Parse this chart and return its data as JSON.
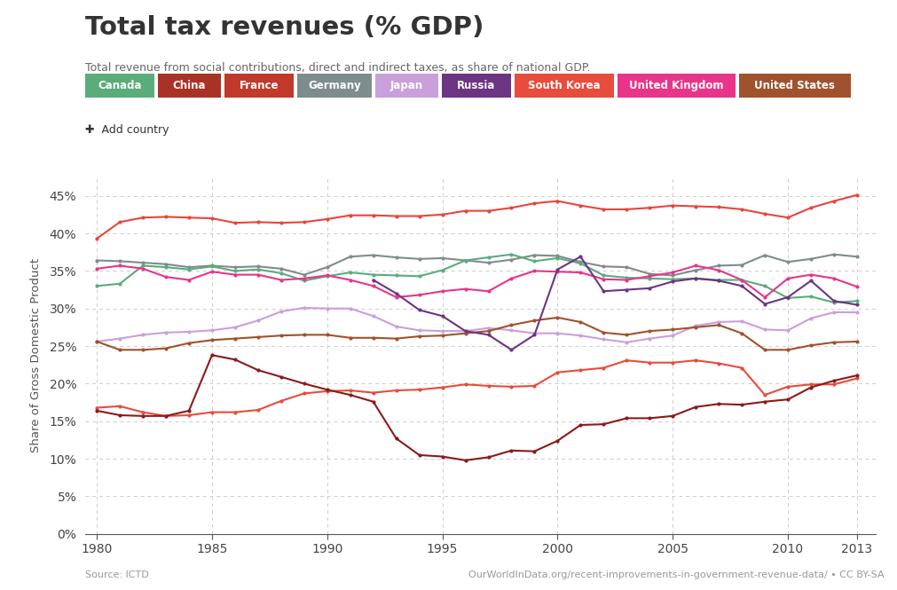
{
  "title": "Total tax revenues (% GDP)",
  "subtitle": "Total revenue from social contributions, direct and indirect taxes, as share of national GDP.",
  "ylabel": "Share of Gross Domestic Product",
  "source_left": "Source: ICTD",
  "source_right": "OurWorldInData.org/recent-improvements-in-government-revenue-data/ • CC BY-SA",
  "add_country_text": "✚  Add country",
  "xlim": [
    1979.5,
    2013.8
  ],
  "ylim": [
    0,
    0.475
  ],
  "yticks": [
    0.0,
    0.05,
    0.1,
    0.15,
    0.2,
    0.25,
    0.3,
    0.35,
    0.4,
    0.45
  ],
  "ytick_labels": [
    "0%",
    "5%",
    "10%",
    "15%",
    "20%",
    "25%",
    "30%",
    "35%",
    "40%",
    "45%"
  ],
  "xticks": [
    1980,
    1985,
    1990,
    1995,
    2000,
    2005,
    2010,
    2013
  ],
  "legend_countries": [
    "Canada",
    "China",
    "France",
    "Germany",
    "Japan",
    "Russia",
    "South Korea",
    "United Kingdom",
    "United States"
  ],
  "legend_colors": [
    "#5aac7b",
    "#a93226",
    "#c0392b",
    "#7f8c8d",
    "#c9a0dc",
    "#6c3483",
    "#e74c3c",
    "#e8358a",
    "#a0522d"
  ],
  "series": {
    "France": {
      "color": "#e8453c",
      "years": [
        1980,
        1981,
        1982,
        1983,
        1984,
        1985,
        1986,
        1987,
        1988,
        1989,
        1990,
        1991,
        1992,
        1993,
        1994,
        1995,
        1996,
        1997,
        1998,
        1999,
        2000,
        2001,
        2002,
        2003,
        2004,
        2005,
        2006,
        2007,
        2008,
        2009,
        2010,
        2011,
        2012,
        2013
      ],
      "values": [
        0.393,
        0.415,
        0.421,
        0.422,
        0.421,
        0.42,
        0.414,
        0.415,
        0.414,
        0.415,
        0.419,
        0.424,
        0.424,
        0.423,
        0.423,
        0.425,
        0.43,
        0.43,
        0.434,
        0.44,
        0.443,
        0.437,
        0.432,
        0.432,
        0.434,
        0.437,
        0.436,
        0.435,
        0.432,
        0.426,
        0.421,
        0.434,
        0.443,
        0.451
      ]
    },
    "Germany": {
      "color": "#7f8c8d",
      "years": [
        1980,
        1981,
        1982,
        1983,
        1984,
        1985,
        1986,
        1987,
        1988,
        1989,
        1990,
        1991,
        1992,
        1993,
        1994,
        1995,
        1996,
        1997,
        1998,
        1999,
        2000,
        2001,
        2002,
        2003,
        2004,
        2005,
        2006,
        2007,
        2008,
        2009,
        2010,
        2011,
        2012,
        2013
      ],
      "values": [
        0.364,
        0.363,
        0.361,
        0.359,
        0.355,
        0.357,
        0.355,
        0.356,
        0.353,
        0.345,
        0.355,
        0.369,
        0.371,
        0.368,
        0.366,
        0.367,
        0.364,
        0.361,
        0.365,
        0.371,
        0.37,
        0.362,
        0.356,
        0.355,
        0.346,
        0.344,
        0.351,
        0.357,
        0.358,
        0.371,
        0.362,
        0.366,
        0.372,
        0.369
      ]
    },
    "Canada": {
      "color": "#5aac7b",
      "years": [
        1980,
        1981,
        1982,
        1983,
        1984,
        1985,
        1986,
        1987,
        1988,
        1989,
        1990,
        1991,
        1992,
        1993,
        1994,
        1995,
        1996,
        1997,
        1998,
        1999,
        2000,
        2001,
        2002,
        2003,
        2004,
        2005,
        2006,
        2007,
        2008,
        2009,
        2010,
        2011,
        2012,
        2013
      ],
      "values": [
        0.33,
        0.333,
        0.357,
        0.355,
        0.352,
        0.356,
        0.35,
        0.352,
        0.347,
        0.337,
        0.343,
        0.348,
        0.345,
        0.344,
        0.343,
        0.351,
        0.364,
        0.368,
        0.372,
        0.363,
        0.367,
        0.36,
        0.344,
        0.341,
        0.34,
        0.339,
        0.34,
        0.338,
        0.338,
        0.33,
        0.314,
        0.316,
        0.308,
        0.31
      ]
    },
    "United Kingdom": {
      "color": "#e8358a",
      "years": [
        1980,
        1981,
        1982,
        1983,
        1984,
        1985,
        1986,
        1987,
        1988,
        1989,
        1990,
        1991,
        1992,
        1993,
        1994,
        1995,
        1996,
        1997,
        1998,
        1999,
        2000,
        2001,
        2002,
        2003,
        2004,
        2005,
        2006,
        2007,
        2008,
        2009,
        2010,
        2011,
        2012,
        2013
      ],
      "values": [
        0.353,
        0.357,
        0.353,
        0.342,
        0.338,
        0.349,
        0.345,
        0.345,
        0.338,
        0.34,
        0.344,
        0.338,
        0.33,
        0.315,
        0.318,
        0.323,
        0.326,
        0.323,
        0.34,
        0.35,
        0.349,
        0.348,
        0.339,
        0.338,
        0.343,
        0.348,
        0.357,
        0.351,
        0.338,
        0.315,
        0.34,
        0.345,
        0.34,
        0.329
      ]
    },
    "Japan": {
      "color": "#c9a0dc",
      "years": [
        1980,
        1981,
        1982,
        1983,
        1984,
        1985,
        1986,
        1987,
        1988,
        1989,
        1990,
        1991,
        1992,
        1993,
        1994,
        1995,
        1996,
        1997,
        1998,
        1999,
        2000,
        2001,
        2002,
        2003,
        2004,
        2005,
        2006,
        2007,
        2008,
        2009,
        2010,
        2011,
        2012,
        2013
      ],
      "values": [
        0.256,
        0.26,
        0.265,
        0.268,
        0.269,
        0.271,
        0.275,
        0.284,
        0.296,
        0.301,
        0.3,
        0.3,
        0.29,
        0.276,
        0.271,
        0.27,
        0.27,
        0.274,
        0.271,
        0.267,
        0.267,
        0.264,
        0.259,
        0.255,
        0.26,
        0.264,
        0.277,
        0.282,
        0.283,
        0.272,
        0.271,
        0.287,
        0.295,
        0.295
      ]
    },
    "United States": {
      "color": "#a0522d",
      "years": [
        1980,
        1981,
        1982,
        1983,
        1984,
        1985,
        1986,
        1987,
        1988,
        1989,
        1990,
        1991,
        1992,
        1993,
        1994,
        1995,
        1996,
        1997,
        1998,
        1999,
        2000,
        2001,
        2002,
        2003,
        2004,
        2005,
        2006,
        2007,
        2008,
        2009,
        2010,
        2011,
        2012,
        2013
      ],
      "values": [
        0.256,
        0.245,
        0.245,
        0.247,
        0.254,
        0.258,
        0.26,
        0.262,
        0.264,
        0.265,
        0.265,
        0.261,
        0.261,
        0.26,
        0.263,
        0.264,
        0.267,
        0.27,
        0.278,
        0.284,
        0.288,
        0.282,
        0.268,
        0.265,
        0.27,
        0.272,
        0.275,
        0.278,
        0.267,
        0.245,
        0.245,
        0.251,
        0.255,
        0.256
      ]
    },
    "South Korea": {
      "color": "#e74c3c",
      "years": [
        1980,
        1981,
        1982,
        1983,
        1984,
        1985,
        1986,
        1987,
        1988,
        1989,
        1990,
        1991,
        1992,
        1993,
        1994,
        1995,
        1996,
        1997,
        1998,
        1999,
        2000,
        2001,
        2002,
        2003,
        2004,
        2005,
        2006,
        2007,
        2008,
        2009,
        2010,
        2011,
        2012,
        2013
      ],
      "values": [
        0.168,
        0.17,
        0.162,
        0.157,
        0.158,
        0.162,
        0.162,
        0.165,
        0.177,
        0.187,
        0.19,
        0.191,
        0.188,
        0.191,
        0.192,
        0.195,
        0.199,
        0.197,
        0.196,
        0.197,
        0.215,
        0.218,
        0.221,
        0.231,
        0.228,
        0.228,
        0.231,
        0.227,
        0.221,
        0.185,
        0.196,
        0.199,
        0.199,
        0.207
      ]
    },
    "Russia": {
      "color": "#6c3483",
      "years": [
        1992,
        1993,
        1994,
        1995,
        1996,
        1997,
        1998,
        1999,
        2000,
        2001,
        2002,
        2003,
        2004,
        2005,
        2006,
        2007,
        2008,
        2009,
        2010,
        2011,
        2012,
        2013
      ],
      "values": [
        0.338,
        0.32,
        0.298,
        0.29,
        0.27,
        0.265,
        0.245,
        0.265,
        0.352,
        0.369,
        0.323,
        0.325,
        0.327,
        0.336,
        0.34,
        0.337,
        0.33,
        0.306,
        0.315,
        0.337,
        0.31,
        0.305
      ]
    },
    "China": {
      "color": "#8b1a1a",
      "years": [
        1980,
        1981,
        1982,
        1983,
        1984,
        1985,
        1986,
        1987,
        1988,
        1989,
        1990,
        1991,
        1992,
        1993,
        1994,
        1995,
        1996,
        1997,
        1998,
        1999,
        2000,
        2001,
        2002,
        2003,
        2004,
        2005,
        2006,
        2007,
        2008,
        2009,
        2010,
        2011,
        2012,
        2013
      ],
      "values": [
        0.164,
        0.158,
        0.157,
        0.157,
        0.164,
        0.238,
        0.232,
        0.218,
        0.209,
        0.2,
        0.192,
        0.185,
        0.176,
        0.127,
        0.105,
        0.103,
        0.098,
        0.102,
        0.111,
        0.11,
        0.124,
        0.145,
        0.146,
        0.154,
        0.154,
        0.157,
        0.169,
        0.173,
        0.172,
        0.176,
        0.179,
        0.195,
        0.204,
        0.211
      ]
    }
  }
}
